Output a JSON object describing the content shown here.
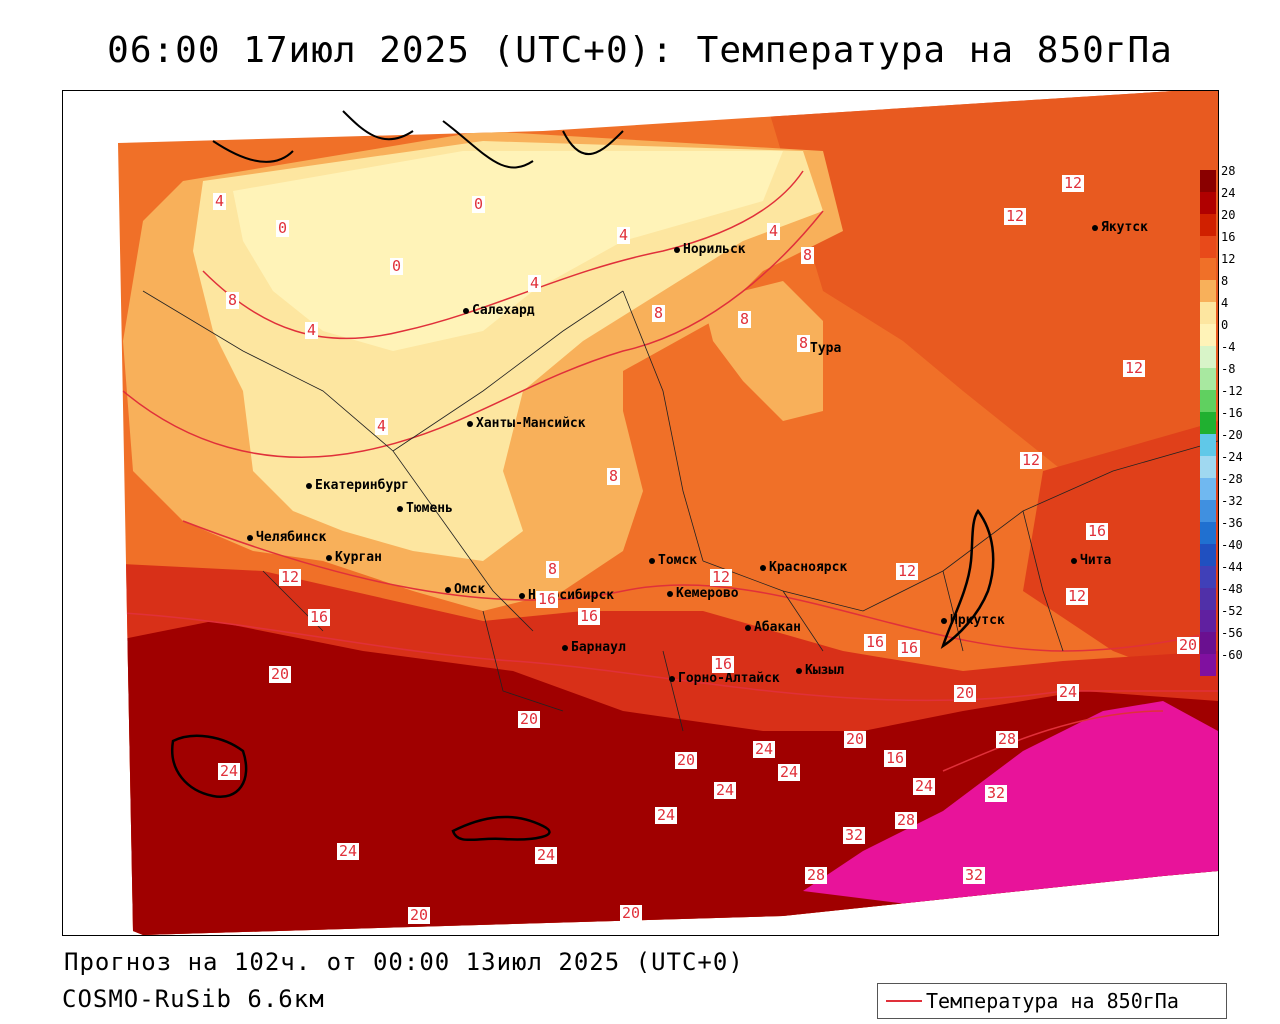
{
  "title": "06:00 17июл 2025 (UTC+0): Температура на 850гПа",
  "forecast_text": "Прогноз на 102ч. от 00:00 13июл 2025 (UTC+0)",
  "model_text": "COSMO-RuSib 6.6км",
  "legend_text": "Температура на 850гПа",
  "colors": {
    "background": "#ffffff",
    "cold_0": "#fff3b8",
    "cool_4": "#fde6a0",
    "mild_8": "#f8b05a",
    "warm_12": "#f07028",
    "hot_16": "#e84a1a",
    "hot_20": "#c82010",
    "very_hot_24": "#9a0000",
    "extreme_32": "#e8139a",
    "isotherm": "#e0303a"
  },
  "cities": [
    {
      "name": "Норильск"
    },
    {
      "name": "Салехард"
    },
    {
      "name": "Тура"
    },
    {
      "name": "Якутск"
    },
    {
      "name": "Ханты-Мансийск"
    },
    {
      "name": "Екатеринбург"
    },
    {
      "name": "Тюмень"
    },
    {
      "name": "Челябинск"
    },
    {
      "name": "Курган"
    },
    {
      "name": "Омск"
    },
    {
      "name": "Томск"
    },
    {
      "name": "Красноярск"
    },
    {
      "name": "Новосибирск"
    },
    {
      "name": "Кемерово"
    },
    {
      "name": "Барнаул"
    },
    {
      "name": "Абакан"
    },
    {
      "name": "Горно-Алтайск"
    },
    {
      "name": "Кызыл"
    },
    {
      "name": "Иркутск"
    },
    {
      "name": "Чита"
    }
  ],
  "contour_labels": [
    "4",
    "0",
    "0",
    "0",
    "4",
    "4",
    "8",
    "4",
    "8",
    "8",
    "4",
    "4",
    "8",
    "8",
    "8",
    "12",
    "12",
    "12",
    "12",
    "12",
    "16",
    "12",
    "8",
    "12",
    "16",
    "16",
    "16",
    "16",
    "16",
    "20",
    "20",
    "20",
    "24",
    "20",
    "24",
    "20",
    "24",
    "24",
    "20",
    "28",
    "24",
    "16",
    "24",
    "32",
    "28",
    "32",
    "24",
    "24",
    "28",
    "32",
    "24",
    "20",
    "20",
    "16",
    "12"
  ],
  "colorbar": {
    "ticks": [
      "28",
      "24",
      "20",
      "16",
      "12",
      "8",
      "4",
      "0",
      "-4",
      "-8",
      "-12",
      "-16",
      "-20",
      "-24",
      "-28",
      "-32",
      "-36",
      "-40",
      "-44",
      "-48",
      "-52",
      "-56",
      "-60"
    ],
    "colors": [
      "#8a0000",
      "#b00000",
      "#d02000",
      "#e84a1a",
      "#f07028",
      "#f8b05a",
      "#fde6a0",
      "#fff3b8",
      "#d8f4c8",
      "#a8e8a0",
      "#60d060",
      "#20b030",
      "#60c8e8",
      "#a0d8f0",
      "#70b8f0",
      "#4090e0",
      "#2070d0",
      "#2050c0",
      "#4040b8",
      "#5030a8",
      "#6020a0",
      "#6a1090",
      "#8010a0"
    ]
  }
}
